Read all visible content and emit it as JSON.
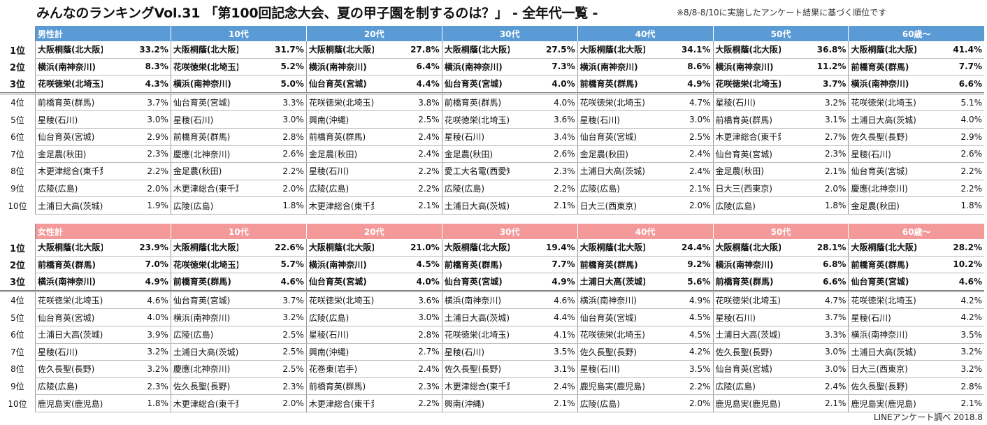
{
  "title": "みんなのランキングVol.31 「第100回記念大会、夏の甲子園を制するのは？」 - 全年代一覧 -",
  "note": "※8/8-8/10に実施したアンケート結果に基づく順位です",
  "source": "LINEアンケート調べ 2018.8",
  "colors": {
    "male_header": "#5b9bd5",
    "female_header": "#f4999a"
  },
  "ranks": [
    "1位",
    "2位",
    "3位",
    "4位",
    "5位",
    "6位",
    "7位",
    "8位",
    "9位",
    "10位"
  ],
  "male": {
    "headers": [
      "男性計",
      "10代",
      "20代",
      "30代",
      "40代",
      "50代",
      "60歳～"
    ],
    "columns": [
      [
        [
          "大阪桐蔭(北大阪)",
          "33.2%"
        ],
        [
          "横浜(南神奈川)",
          "8.3%"
        ],
        [
          "花咲徳栄(北埼玉)",
          "4.3%"
        ],
        [
          "前橋育英(群馬)",
          "3.7%"
        ],
        [
          "星稜(石川)",
          "3.0%"
        ],
        [
          "仙台育英(宮城)",
          "2.9%"
        ],
        [
          "金足農(秋田)",
          "2.3%"
        ],
        [
          "木更津総合(東千葉)",
          "2.2%"
        ],
        [
          "広陵(広島)",
          "2.0%"
        ],
        [
          "土浦日大高(茨城)",
          "1.9%"
        ]
      ],
      [
        [
          "大阪桐蔭(北大阪)",
          "31.7%"
        ],
        [
          "花咲徳栄(北埼玉)",
          "5.2%"
        ],
        [
          "横浜(南神奈川)",
          "5.0%"
        ],
        [
          "仙台育英(宮城)",
          "3.3%"
        ],
        [
          "星稜(石川)",
          "3.0%"
        ],
        [
          "前橋育英(群馬)",
          "2.8%"
        ],
        [
          "慶應(北神奈川)",
          "2.6%"
        ],
        [
          "金足農(秋田)",
          "2.2%"
        ],
        [
          "木更津総合(東千葉)",
          "2.0%"
        ],
        [
          "広陵(広島)",
          "1.8%"
        ]
      ],
      [
        [
          "大阪桐蔭(北大阪)",
          "27.8%"
        ],
        [
          "横浜(南神奈川)",
          "6.4%"
        ],
        [
          "仙台育英(宮城)",
          "4.4%"
        ],
        [
          "花咲徳栄(北埼玉)",
          "3.8%"
        ],
        [
          "興南(沖縄)",
          "2.5%"
        ],
        [
          "前橋育英(群馬)",
          "2.4%"
        ],
        [
          "金足農(秋田)",
          "2.4%"
        ],
        [
          "星稜(石川)",
          "2.2%"
        ],
        [
          "広陵(広島)",
          "2.2%"
        ],
        [
          "木更津総合(東千葉)",
          "2.1%"
        ]
      ],
      [
        [
          "大阪桐蔭(北大阪)",
          "27.5%"
        ],
        [
          "横浜(南神奈川)",
          "7.3%"
        ],
        [
          "仙台育英(宮城)",
          "4.0%"
        ],
        [
          "前橋育英(群馬)",
          "4.0%"
        ],
        [
          "花咲徳栄(北埼玉)",
          "3.6%"
        ],
        [
          "星稜(石川)",
          "3.4%"
        ],
        [
          "金足農(秋田)",
          "2.6%"
        ],
        [
          "愛工大名電(西愛知)",
          "2.3%"
        ],
        [
          "広陵(広島)",
          "2.2%"
        ],
        [
          "土浦日大高(茨城)",
          "2.1%"
        ]
      ],
      [
        [
          "大阪桐蔭(北大阪)",
          "34.1%"
        ],
        [
          "横浜(南神奈川)",
          "8.6%"
        ],
        [
          "前橋育英(群馬)",
          "4.9%"
        ],
        [
          "花咲徳栄(北埼玉)",
          "4.7%"
        ],
        [
          "星稜(石川)",
          "3.0%"
        ],
        [
          "仙台育英(宮城)",
          "2.5%"
        ],
        [
          "金足農(秋田)",
          "2.4%"
        ],
        [
          "土浦日大高(茨城)",
          "2.4%"
        ],
        [
          "広陵(広島)",
          "2.1%"
        ],
        [
          "日大三(西東京)",
          "2.0%"
        ]
      ],
      [
        [
          "大阪桐蔭(北大阪)",
          "36.8%"
        ],
        [
          "横浜(南神奈川)",
          "11.2%"
        ],
        [
          "花咲徳栄(北埼玉)",
          "3.7%"
        ],
        [
          "星稜(石川)",
          "3.2%"
        ],
        [
          "前橋育英(群馬)",
          "3.1%"
        ],
        [
          "木更津総合(東千葉)",
          "2.7%"
        ],
        [
          "仙台育英(宮城)",
          "2.3%"
        ],
        [
          "金足農(秋田)",
          "2.1%"
        ],
        [
          "日大三(西東京)",
          "2.0%"
        ],
        [
          "広陵(広島)",
          "1.8%"
        ]
      ],
      [
        [
          "大阪桐蔭(北大阪)",
          "41.4%"
        ],
        [
          "前橋育英(群馬)",
          "7.7%"
        ],
        [
          "横浜(南神奈川)",
          "6.6%"
        ],
        [
          "花咲徳栄(北埼玉)",
          "5.1%"
        ],
        [
          "土浦日大高(茨城)",
          "4.0%"
        ],
        [
          "佐久長聖(長野)",
          "2.9%"
        ],
        [
          "星稜(石川)",
          "2.6%"
        ],
        [
          "仙台育英(宮城)",
          "2.2%"
        ],
        [
          "慶應(北神奈川)",
          "2.2%"
        ],
        [
          "金足農(秋田)",
          "1.8%"
        ]
      ]
    ]
  },
  "female": {
    "headers": [
      "女性計",
      "10代",
      "20代",
      "30代",
      "40代",
      "50代",
      "60歳～"
    ],
    "columns": [
      [
        [
          "大阪桐蔭(北大阪)",
          "23.9%"
        ],
        [
          "前橋育英(群馬)",
          "7.0%"
        ],
        [
          "横浜(南神奈川)",
          "4.9%"
        ],
        [
          "花咲徳栄(北埼玉)",
          "4.6%"
        ],
        [
          "仙台育英(宮城)",
          "4.0%"
        ],
        [
          "土浦日大高(茨城)",
          "3.9%"
        ],
        [
          "星稜(石川)",
          "3.2%"
        ],
        [
          "佐久長聖(長野)",
          "3.2%"
        ],
        [
          "広陵(広島)",
          "2.3%"
        ],
        [
          "鹿児島実(鹿児島)",
          "1.8%"
        ]
      ],
      [
        [
          "大阪桐蔭(北大阪)",
          "22.6%"
        ],
        [
          "花咲徳栄(北埼玉)",
          "5.7%"
        ],
        [
          "前橋育英(群馬)",
          "4.6%"
        ],
        [
          "仙台育英(宮城)",
          "3.7%"
        ],
        [
          "横浜(南神奈川)",
          "3.2%"
        ],
        [
          "広陵(広島)",
          "2.5%"
        ],
        [
          "土浦日大高(茨城)",
          "2.5%"
        ],
        [
          "慶應(北神奈川)",
          "2.5%"
        ],
        [
          "佐久長聖(長野)",
          "2.3%"
        ],
        [
          "木更津総合(東千葉)",
          "2.0%"
        ]
      ],
      [
        [
          "大阪桐蔭(北大阪)",
          "21.0%"
        ],
        [
          "横浜(南神奈川)",
          "4.5%"
        ],
        [
          "仙台育英(宮城)",
          "4.0%"
        ],
        [
          "花咲徳栄(北埼玉)",
          "3.6%"
        ],
        [
          "広陵(広島)",
          "3.0%"
        ],
        [
          "星稜(石川)",
          "2.8%"
        ],
        [
          "興南(沖縄)",
          "2.7%"
        ],
        [
          "花巻東(岩手)",
          "2.4%"
        ],
        [
          "前橋育英(群馬)",
          "2.3%"
        ],
        [
          "木更津総合(東千葉)",
          "2.2%"
        ]
      ],
      [
        [
          "大阪桐蔭(北大阪)",
          "19.4%"
        ],
        [
          "前橋育英(群馬)",
          "7.7%"
        ],
        [
          "仙台育英(宮城)",
          "4.9%"
        ],
        [
          "横浜(南神奈川)",
          "4.6%"
        ],
        [
          "土浦日大高(茨城)",
          "4.4%"
        ],
        [
          "花咲徳栄(北埼玉)",
          "4.1%"
        ],
        [
          "星稜(石川)",
          "3.5%"
        ],
        [
          "佐久長聖(長野)",
          "3.1%"
        ],
        [
          "木更津総合(東千葉)",
          "2.4%"
        ],
        [
          "興南(沖縄)",
          "2.1%"
        ]
      ],
      [
        [
          "大阪桐蔭(北大阪)",
          "24.4%"
        ],
        [
          "前橋育英(群馬)",
          "9.2%"
        ],
        [
          "土浦日大高(茨城)",
          "5.6%"
        ],
        [
          "横浜(南神奈川)",
          "4.9%"
        ],
        [
          "仙台育英(宮城)",
          "4.5%"
        ],
        [
          "花咲徳栄(北埼玉)",
          "4.5%"
        ],
        [
          "佐久長聖(長野)",
          "4.2%"
        ],
        [
          "星稜(石川)",
          "3.5%"
        ],
        [
          "鹿児島実(鹿児島)",
          "2.2%"
        ],
        [
          "広陵(広島)",
          "2.0%"
        ]
      ],
      [
        [
          "大阪桐蔭(北大阪)",
          "28.1%"
        ],
        [
          "横浜(南神奈川)",
          "6.8%"
        ],
        [
          "前橋育英(群馬)",
          "6.6%"
        ],
        [
          "花咲徳栄(北埼玉)",
          "4.7%"
        ],
        [
          "星稜(石川)",
          "3.7%"
        ],
        [
          "土浦日大高(茨城)",
          "3.3%"
        ],
        [
          "佐久長聖(長野)",
          "3.0%"
        ],
        [
          "仙台育英(宮城)",
          "3.0%"
        ],
        [
          "広陵(広島)",
          "2.4%"
        ],
        [
          "鹿児島実(鹿児島)",
          "2.1%"
        ]
      ],
      [
        [
          "大阪桐蔭(北大阪)",
          "28.2%"
        ],
        [
          "前橋育英(群馬)",
          "10.2%"
        ],
        [
          "仙台育英(宮城)",
          "4.6%"
        ],
        [
          "花咲徳栄(北埼玉)",
          "4.2%"
        ],
        [
          "星稜(石川)",
          "4.2%"
        ],
        [
          "横浜(南神奈川)",
          "3.5%"
        ],
        [
          "土浦日大高(茨城)",
          "3.2%"
        ],
        [
          "日大三(西東京)",
          "3.2%"
        ],
        [
          "佐久長聖(長野)",
          "2.8%"
        ],
        [
          "鹿児島実(鹿児島)",
          "2.1%"
        ]
      ]
    ]
  }
}
